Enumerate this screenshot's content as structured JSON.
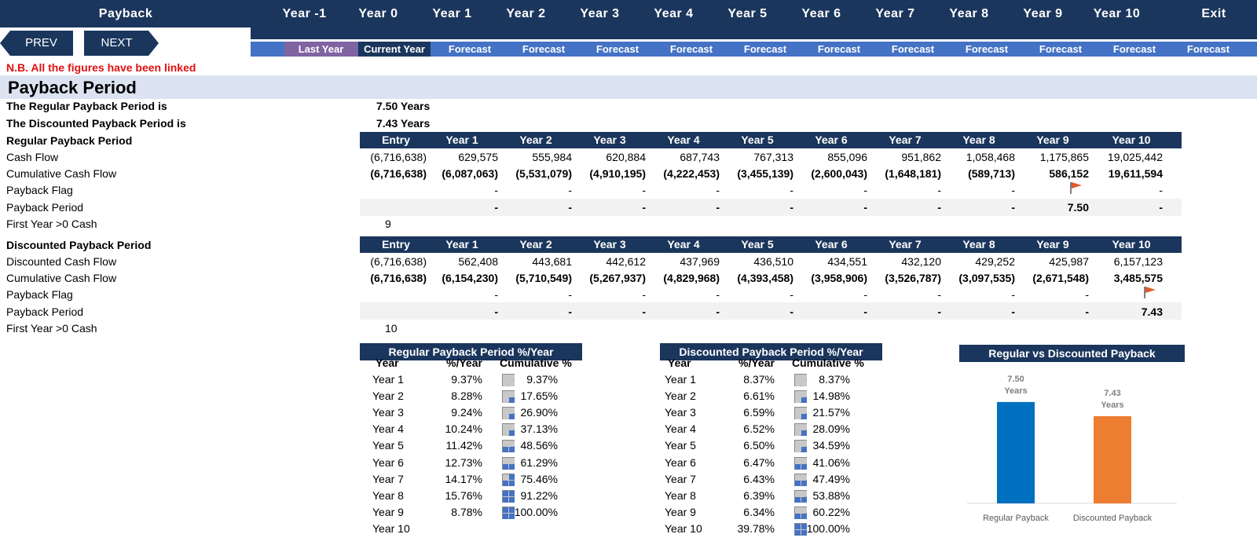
{
  "nav": {
    "items": [
      "Payback",
      "Year -1",
      "Year 0",
      "Year 1",
      "Year 2",
      "Year 3",
      "Year 4",
      "Year 5",
      "Year 6",
      "Year 7",
      "Year 8",
      "Year 9",
      "Year 10",
      "Exit"
    ],
    "period_labels": [
      "Last Year",
      "Current Year",
      "Forecast",
      "Forecast",
      "Forecast",
      "Forecast",
      "Forecast",
      "Forecast",
      "Forecast",
      "Forecast",
      "Forecast",
      "Forecast",
      "Forecast"
    ],
    "prev_label": "PREV",
    "next_label": "NEXT"
  },
  "note": "N.B. All the figures have been linked",
  "section_title": "Payback Period",
  "summary": {
    "regular_label": "The Regular Payback Period is",
    "regular_value": "7.50 Years",
    "discounted_label": "The Discounted Payback Period is",
    "discounted_value": "7.43 Years"
  },
  "columns": [
    "Entry",
    "Year 1",
    "Year 2",
    "Year 3",
    "Year 4",
    "Year 5",
    "Year 6",
    "Year 7",
    "Year 8",
    "Year 9",
    "Year 10"
  ],
  "regular": {
    "title": "Regular Payback Period",
    "cash_flow_label": "Cash Flow",
    "cash_flow": [
      "(6,716,638)",
      "629,575",
      "555,984",
      "620,884",
      "687,743",
      "767,313",
      "855,096",
      "951,862",
      "1,058,468",
      "1,175,865",
      "19,025,442"
    ],
    "cumulative_label": "Cumulative Cash Flow",
    "cumulative": [
      "(6,716,638)",
      "(6,087,063)",
      "(5,531,079)",
      "(4,910,195)",
      "(4,222,453)",
      "(3,455,139)",
      "(2,600,043)",
      "(1,648,181)",
      "(589,713)",
      "586,152",
      "19,611,594"
    ],
    "flag_label": "Payback Flag",
    "flags": [
      "",
      "-",
      "-",
      "-",
      "-",
      "-",
      "-",
      "-",
      "-",
      "flag",
      "-"
    ],
    "period_label": "Payback Period",
    "period": [
      "",
      "-",
      "-",
      "-",
      "-",
      "-",
      "-",
      "-",
      "-",
      "7.50",
      "-"
    ],
    "first_year_label": "First Year >0 Cash",
    "first_year": "9"
  },
  "discounted": {
    "title": "Discounted Payback Period",
    "cash_flow_label": "Discounted Cash Flow",
    "cash_flow": [
      "(6,716,638)",
      "562,408",
      "443,681",
      "442,612",
      "437,969",
      "436,510",
      "434,551",
      "432,120",
      "429,252",
      "425,987",
      "6,157,123"
    ],
    "cumulative_label": "Cumulative Cash Flow",
    "cumulative": [
      "(6,716,638)",
      "(6,154,230)",
      "(5,710,549)",
      "(5,267,937)",
      "(4,829,968)",
      "(4,393,458)",
      "(3,958,906)",
      "(3,526,787)",
      "(3,097,535)",
      "(2,671,548)",
      "3,485,575"
    ],
    "flag_label": "Payback Flag",
    "flags": [
      "",
      "-",
      "-",
      "-",
      "-",
      "-",
      "-",
      "-",
      "-",
      "-",
      "flag"
    ],
    "period_label": "Payback Period",
    "period": [
      "",
      "-",
      "-",
      "-",
      "-",
      "-",
      "-",
      "-",
      "-",
      "-",
      "7.43"
    ],
    "first_year_label": "First Year >0 Cash",
    "first_year": "10"
  },
  "regular_pct_table": {
    "title": "Regular Payback Period %/Year",
    "headers": [
      "Year",
      "%/Year",
      "Cumulative %"
    ],
    "rows": [
      {
        "year": "Year 1",
        "pct": "9.37%",
        "cum": "9.37%",
        "cum_fraction": 0.0937
      },
      {
        "year": "Year 2",
        "pct": "8.28%",
        "cum": "17.65%",
        "cum_fraction": 0.1765
      },
      {
        "year": "Year 3",
        "pct": "9.24%",
        "cum": "26.90%",
        "cum_fraction": 0.269
      },
      {
        "year": "Year 4",
        "pct": "10.24%",
        "cum": "37.13%",
        "cum_fraction": 0.3713
      },
      {
        "year": "Year 5",
        "pct": "11.42%",
        "cum": "48.56%",
        "cum_fraction": 0.4856
      },
      {
        "year": "Year 6",
        "pct": "12.73%",
        "cum": "61.29%",
        "cum_fraction": 0.6129
      },
      {
        "year": "Year 7",
        "pct": "14.17%",
        "cum": "75.46%",
        "cum_fraction": 0.7546
      },
      {
        "year": "Year 8",
        "pct": "15.76%",
        "cum": "91.22%",
        "cum_fraction": 0.9122
      },
      {
        "year": "Year 9",
        "pct": "8.78%",
        "cum": "100.00%",
        "cum_fraction": 1.0
      },
      {
        "year": "Year 10",
        "pct": "",
        "cum": "",
        "cum_fraction": null
      }
    ]
  },
  "discounted_pct_table": {
    "title": "Discounted Payback Period %/Year",
    "headers": [
      "Year",
      "%/Year",
      "Cumulative %"
    ],
    "rows": [
      {
        "year": "Year 1",
        "pct": "8.37%",
        "cum": "8.37%",
        "cum_fraction": 0.0837
      },
      {
        "year": "Year 2",
        "pct": "6.61%",
        "cum": "14.98%",
        "cum_fraction": 0.1498
      },
      {
        "year": "Year 3",
        "pct": "6.59%",
        "cum": "21.57%",
        "cum_fraction": 0.2157
      },
      {
        "year": "Year 4",
        "pct": "6.52%",
        "cum": "28.09%",
        "cum_fraction": 0.2809
      },
      {
        "year": "Year 5",
        "pct": "6.50%",
        "cum": "34.59%",
        "cum_fraction": 0.3459
      },
      {
        "year": "Year 6",
        "pct": "6.47%",
        "cum": "41.06%",
        "cum_fraction": 0.4106
      },
      {
        "year": "Year 7",
        "pct": "6.43%",
        "cum": "47.49%",
        "cum_fraction": 0.4749
      },
      {
        "year": "Year 8",
        "pct": "6.39%",
        "cum": "53.88%",
        "cum_fraction": 0.5388
      },
      {
        "year": "Year 9",
        "pct": "6.34%",
        "cum": "60.22%",
        "cum_fraction": 0.6022
      },
      {
        "year": "Year 10",
        "pct": "39.78%",
        "cum": "100.00%",
        "cum_fraction": 1.0
      }
    ]
  },
  "chart_data": {
    "type": "bar",
    "title": "Regular vs Discounted Payback",
    "categories": [
      "Regular Payback",
      "Discounted Payback"
    ],
    "values": [
      7.5,
      7.43
    ],
    "data_labels": [
      "7.50",
      "7.43"
    ],
    "data_label_unit": "Years",
    "colors": [
      "#0070c0",
      "#ed7d31"
    ],
    "ylim": [
      7.0,
      7.55
    ],
    "grid": false,
    "legend": "none"
  },
  "colors": {
    "navy": "#1b365d",
    "blue": "#4472c4",
    "purple": "#8064a2",
    "note_red": "#e01010",
    "band": "#dbe3f0",
    "flag": "#e05a2a"
  }
}
